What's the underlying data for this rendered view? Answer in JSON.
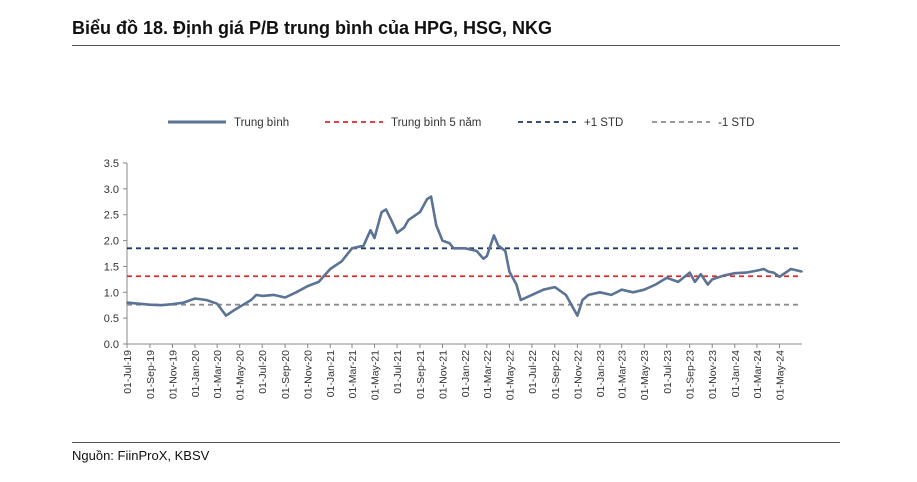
{
  "header": {
    "title": "Biểu đồ 18. Định giá P/B trung bình của HPG, HSG, NKG"
  },
  "footer": {
    "source": "Nguồn: FiinProX, KBSV"
  },
  "chart_data": {
    "type": "line",
    "title": "Biểu đồ 18. Định giá P/B trung bình của HPG, HSG, NKG",
    "xlabel": "",
    "ylabel": "",
    "ylim": [
      0,
      3.5
    ],
    "y_ticks": [
      "0.0",
      "0.5",
      "1.0",
      "1.5",
      "2.0",
      "2.5",
      "3.0",
      "3.5"
    ],
    "x_ticks": [
      "01-Jul-19",
      "01-Sep-19",
      "01-Nov-19",
      "01-Jan-20",
      "01-Mar-20",
      "01-May-20",
      "01-Jul-20",
      "01-Sep-20",
      "01-Nov-20",
      "01-Jan-21",
      "01-Mar-21",
      "01-May-21",
      "01-Jul-21",
      "01-Sep-21",
      "01-Nov-21",
      "01-Jan-22",
      "01-Mar-22",
      "01-May-22",
      "01-Jul-22",
      "01-Sep-22",
      "01-Nov-22",
      "01-Jan-23",
      "01-Mar-23",
      "01-May-23",
      "01-Jul-23",
      "01-Sep-23",
      "01-Nov-23",
      "01-Jan-24",
      "01-Mar-24",
      "01-May-24"
    ],
    "x_range": [
      "2019-07-01",
      "2024-07-01"
    ],
    "grid": false,
    "legend_position": "top",
    "series": [
      {
        "name": "Trung bình",
        "style": "solid",
        "color": "#5b7394",
        "x": [
          "2019-07-01",
          "2019-08-01",
          "2019-09-01",
          "2019-10-01",
          "2019-11-01",
          "2019-12-01",
          "2020-01-01",
          "2020-02-01",
          "2020-03-01",
          "2020-03-25",
          "2020-04-15",
          "2020-05-01",
          "2020-06-01",
          "2020-06-15",
          "2020-07-01",
          "2020-08-01",
          "2020-09-01",
          "2020-10-01",
          "2020-11-01",
          "2020-12-01",
          "2021-01-01",
          "2021-02-01",
          "2021-03-01",
          "2021-04-01",
          "2021-04-20",
          "2021-05-01",
          "2021-05-20",
          "2021-06-01",
          "2021-06-15",
          "2021-07-01",
          "2021-07-20",
          "2021-08-01",
          "2021-09-01",
          "2021-09-20",
          "2021-10-01",
          "2021-10-15",
          "2021-11-01",
          "2021-11-20",
          "2021-12-01",
          "2022-01-01",
          "2022-02-01",
          "2022-02-20",
          "2022-03-01",
          "2022-03-20",
          "2022-04-01",
          "2022-04-20",
          "2022-05-01",
          "2022-05-20",
          "2022-06-01",
          "2022-07-01",
          "2022-08-01",
          "2022-09-01",
          "2022-10-01",
          "2022-11-01",
          "2022-11-15",
          "2022-12-01",
          "2023-01-01",
          "2023-02-01",
          "2023-03-01",
          "2023-04-01",
          "2023-05-01",
          "2023-06-01",
          "2023-07-01",
          "2023-08-01",
          "2023-09-01",
          "2023-09-15",
          "2023-10-01",
          "2023-10-20",
          "2023-11-01",
          "2023-12-01",
          "2024-01-01",
          "2024-02-01",
          "2024-03-01",
          "2024-03-20",
          "2024-04-01",
          "2024-04-15",
          "2024-05-01",
          "2024-06-01",
          "2024-07-01"
        ],
        "values": [
          0.8,
          0.78,
          0.76,
          0.75,
          0.77,
          0.8,
          0.88,
          0.85,
          0.78,
          0.55,
          0.65,
          0.72,
          0.85,
          0.95,
          0.93,
          0.95,
          0.9,
          1.0,
          1.12,
          1.2,
          1.45,
          1.6,
          1.85,
          1.9,
          2.2,
          2.05,
          2.55,
          2.6,
          2.4,
          2.15,
          2.25,
          2.4,
          2.55,
          2.8,
          2.85,
          2.3,
          2.0,
          1.95,
          1.85,
          1.85,
          1.8,
          1.65,
          1.7,
          2.1,
          1.9,
          1.8,
          1.4,
          1.15,
          0.85,
          0.95,
          1.05,
          1.1,
          0.95,
          0.55,
          0.85,
          0.95,
          1.0,
          0.95,
          1.05,
          1.0,
          1.05,
          1.15,
          1.28,
          1.2,
          1.38,
          1.2,
          1.35,
          1.15,
          1.25,
          1.32,
          1.37,
          1.38,
          1.42,
          1.45,
          1.4,
          1.38,
          1.3,
          1.45,
          1.4
        ]
      },
      {
        "name": "Trung bình 5 năm",
        "style": "dashed",
        "color": "#e0282e",
        "value": 1.31
      },
      {
        "name": "+1 STD",
        "style": "dashed",
        "color": "#1c3a63",
        "value": 1.85
      },
      {
        "name": "-1 STD",
        "style": "dashed",
        "color": "#8c8c8c",
        "value": 0.76
      }
    ]
  }
}
